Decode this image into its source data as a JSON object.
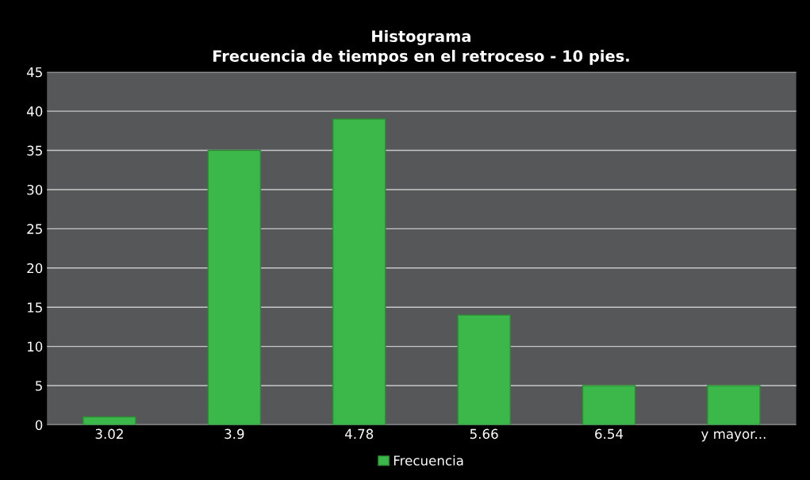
{
  "chart_data": {
    "type": "bar",
    "title": "Histograma",
    "subtitle": "Frecuencia de tiempos en el retroceso - 10 pies.",
    "categories": [
      "3.02",
      "3.9",
      "4.78",
      "5.66",
      "6.54",
      "y mayor..."
    ],
    "series": [
      {
        "name": "Frecuencia",
        "color": "#3cb84a",
        "values": [
          1,
          35,
          39,
          14,
          5,
          5
        ]
      }
    ],
    "ylim": [
      0,
      45
    ],
    "yticks": [
      0,
      5,
      10,
      15,
      20,
      25,
      30,
      35,
      40,
      45
    ],
    "grid": "y",
    "legend": "bottom"
  }
}
